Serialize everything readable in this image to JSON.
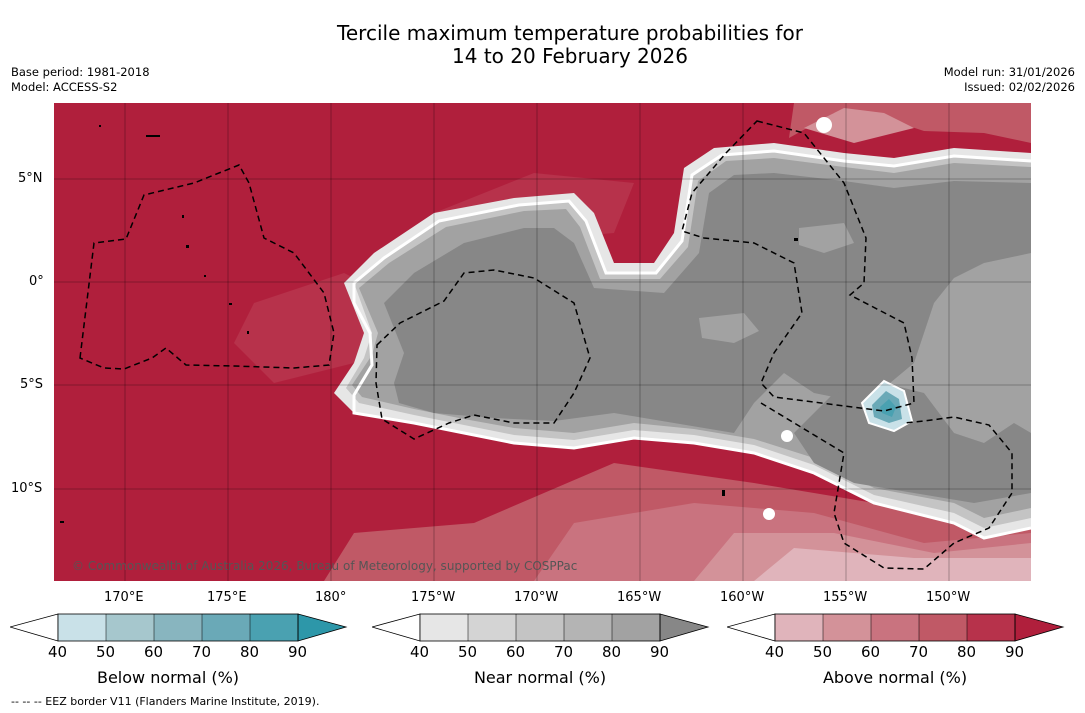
{
  "title_line1": "Tercile maximum temperature probabilities for",
  "title_line2": "14 to 20 February 2026",
  "base_period": "Base period: 1981-2018",
  "model": "Model: ACCESS-S2",
  "model_run": "Model run: 31/01/2026",
  "issued": "Issued: 02/02/2026",
  "copyright": "© Commonwealth of Australia 2026, Bureau of Meteorology, supported by COSPPac",
  "lat_labels": [
    "5°N",
    "0°",
    "5°S",
    "10°S"
  ],
  "lon_labels": [
    "170°E",
    "175°E",
    "180°",
    "175°W",
    "170°W",
    "165°W",
    "160°W",
    "155°W",
    "150°W"
  ],
  "colorbars": [
    {
      "label": "Below normal (%)",
      "ticks": [
        "40",
        "50",
        "60",
        "70",
        "80",
        "90"
      ],
      "colors": [
        "#c9e1e8",
        "#a6c7cd",
        "#88b5bf",
        "#6aa9b7",
        "#4aa1b1",
        "#2d97a9"
      ]
    },
    {
      "label": "Near normal (%)",
      "ticks": [
        "40",
        "50",
        "60",
        "70",
        "80",
        "90"
      ],
      "colors": [
        "#e6e6e6",
        "#d4d4d4",
        "#c4c4c4",
        "#b4b4b4",
        "#a2a2a2",
        "#878787"
      ]
    },
    {
      "label": "Above normal (%)",
      "ticks": [
        "40",
        "50",
        "60",
        "70",
        "80",
        "90"
      ],
      "colors": [
        "#e0b4bb",
        "#d39299",
        "#c9737f",
        "#c05966",
        "#b7324b",
        "#b01f3c"
      ]
    }
  ],
  "footnote": "-- -- -- EEZ border V11 (Flanders Marine Institute, 2019).",
  "colors": {
    "above_90": "#b01f3c",
    "near_90": "#878787",
    "below_90": "#2d97a9"
  }
}
